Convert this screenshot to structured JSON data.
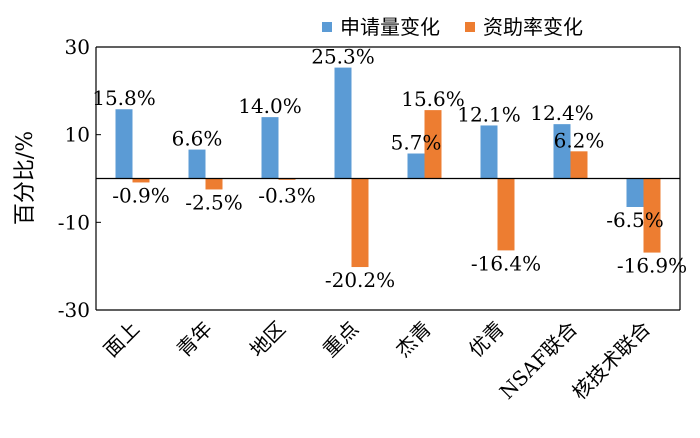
{
  "chart_data": {
    "type": "bar",
    "title": "",
    "xlabel": "",
    "ylabel": "百分比/%",
    "ylim": [
      -30,
      30
    ],
    "yticks": [
      30,
      10,
      -10,
      -30
    ],
    "ytick_labels": [
      "30",
      "10",
      "-10",
      "-30"
    ],
    "grid": false,
    "legend_position": "top-right",
    "categories": [
      "面上",
      "青年",
      "地区",
      "重点",
      "杰青",
      "优青",
      "NSAF联合",
      "核技术联合"
    ],
    "series": [
      {
        "name": "申请量变化",
        "color": "#5b9bd5",
        "values": [
          15.8,
          6.6,
          14.0,
          25.3,
          5.7,
          12.1,
          12.4,
          -6.5
        ],
        "labels": [
          "15.8%",
          "6.6%",
          "14.0%",
          "25.3%",
          "5.7%",
          "12.1%",
          "12.4%",
          "-6.5%"
        ]
      },
      {
        "name": "资助率变化",
        "color": "#ed7d31",
        "values": [
          -0.9,
          -2.5,
          -0.3,
          -20.2,
          15.6,
          -16.4,
          6.2,
          -16.9
        ],
        "labels": [
          "-0.9%",
          "-2.5%",
          "-0.3%",
          "-20.2%",
          "15.6%",
          "-16.4%",
          "6.2%",
          "-16.9%"
        ]
      }
    ]
  }
}
